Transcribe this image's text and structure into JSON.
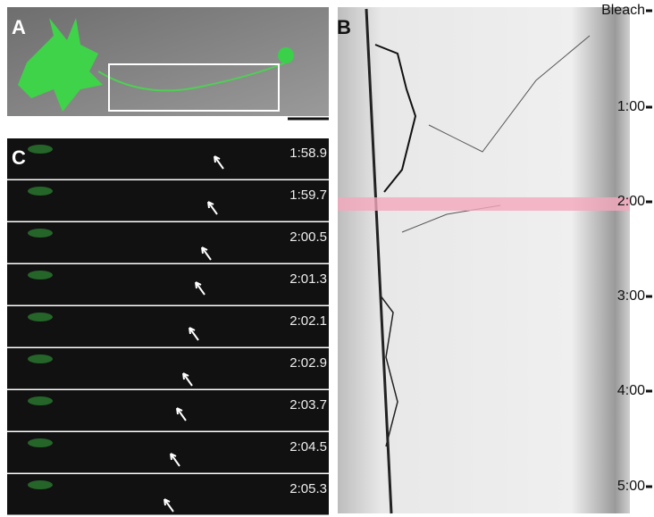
{
  "panel_a": {
    "label": "A"
  },
  "panel_b": {
    "label": "B",
    "time_labels": [
      "Bleach",
      "1:00",
      "2:00",
      "3:00",
      "4:00",
      "5:00"
    ]
  },
  "panel_c": {
    "label": "C",
    "frames": [
      "1:58.9",
      "1:59.7",
      "2:00.5",
      "2:01.3",
      "2:02.1",
      "2:02.9",
      "2:03.7",
      "2:04.5",
      "2:05.3"
    ]
  }
}
